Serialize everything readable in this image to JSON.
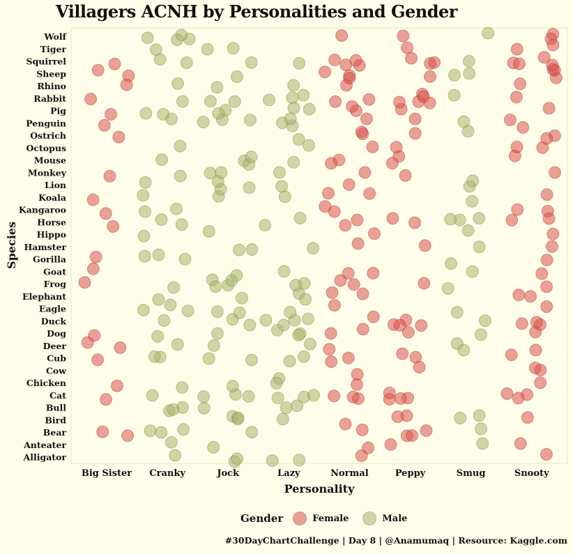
{
  "chart_data": {
    "type": "scatter",
    "subtype": "jitter",
    "title": "Villagers ACNH by Personalities and Gender",
    "xlabel": "Personality",
    "ylabel": "Species",
    "categories": [
      "Big Sister",
      "Cranky",
      "Jock",
      "Lazy",
      "Normal",
      "Peppy",
      "Smug",
      "Snooty"
    ],
    "species": [
      "Alligator",
      "Anteater",
      "Bear",
      "Bird",
      "Bull",
      "Cat",
      "Chicken",
      "Cow",
      "Cub",
      "Deer",
      "Dog",
      "Duck",
      "Eagle",
      "Elephant",
      "Frog",
      "Goat",
      "Gorilla",
      "Hamster",
      "Hippo",
      "Horse",
      "Kangaroo",
      "Koala",
      "Lion",
      "Monkey",
      "Mouse",
      "Octopus",
      "Ostrich",
      "Penguin",
      "Pig",
      "Rabbit",
      "Rhino",
      "Sheep",
      "Squirrel",
      "Tiger",
      "Wolf"
    ],
    "legend": {
      "title": "Gender",
      "position": "bottom",
      "entries": [
        {
          "name": "Female",
          "color": "#d9534f"
        },
        {
          "name": "Male",
          "color": "#a8b56c"
        }
      ]
    },
    "grid": false,
    "caption": "#30DayChartChallenge | Day 8 | @Anamumaq | Resource: Kaggle.com",
    "counts": {
      "Alligator": {
        "Big Sister": 0,
        "Cranky": 1,
        "Jock": 2,
        "Lazy": 2,
        "Normal": 1,
        "Peppy": 0,
        "Smug": 0,
        "Snooty": 1
      },
      "Anteater": {
        "Big Sister": 0,
        "Cranky": 1,
        "Jock": 1,
        "Lazy": 0,
        "Normal": 1,
        "Peppy": 1,
        "Smug": 1,
        "Snooty": 1
      },
      "Bear": {
        "Big Sister": 2,
        "Cranky": 3,
        "Jock": 1,
        "Lazy": 0,
        "Normal": 1,
        "Peppy": 3,
        "Smug": 1,
        "Snooty": 0
      },
      "Bird": {
        "Big Sister": 0,
        "Cranky": 0,
        "Jock": 3,
        "Lazy": 1,
        "Normal": 1,
        "Peppy": 2,
        "Smug": 2,
        "Snooty": 1
      },
      "Bull": {
        "Big Sister": 0,
        "Cranky": 3,
        "Jock": 1,
        "Lazy": 2,
        "Normal": 0,
        "Peppy": 0,
        "Smug": 0,
        "Snooty": 0
      },
      "Cat": {
        "Big Sister": 1,
        "Cranky": 1,
        "Jock": 3,
        "Lazy": 3,
        "Normal": 3,
        "Peppy": 4,
        "Smug": 0,
        "Snooty": 3
      },
      "Chicken": {
        "Big Sister": 1,
        "Cranky": 1,
        "Jock": 1,
        "Lazy": 2,
        "Normal": 1,
        "Peppy": 0,
        "Smug": 0,
        "Snooty": 1
      },
      "Cow": {
        "Big Sister": 0,
        "Cranky": 0,
        "Jock": 0,
        "Lazy": 0,
        "Normal": 1,
        "Peppy": 1,
        "Smug": 0,
        "Snooty": 2
      },
      "Cub": {
        "Big Sister": 1,
        "Cranky": 2,
        "Jock": 2,
        "Lazy": 2,
        "Normal": 2,
        "Peppy": 2,
        "Smug": 0,
        "Snooty": 1
      },
      "Deer": {
        "Big Sister": 2,
        "Cranky": 1,
        "Jock": 1,
        "Lazy": 1,
        "Normal": 1,
        "Peppy": 0,
        "Smug": 2,
        "Snooty": 1
      },
      "Dog": {
        "Big Sister": 1,
        "Cranky": 1,
        "Jock": 1,
        "Lazy": 3,
        "Normal": 2,
        "Peppy": 1,
        "Smug": 1,
        "Snooty": 1
      },
      "Duck": {
        "Big Sister": 0,
        "Cranky": 1,
        "Jock": 2,
        "Lazy": 4,
        "Normal": 1,
        "Peppy": 4,
        "Smug": 1,
        "Snooty": 3
      },
      "Eagle": {
        "Big Sister": 0,
        "Cranky": 3,
        "Jock": 2,
        "Lazy": 1,
        "Normal": 1,
        "Peppy": 0,
        "Smug": 1,
        "Snooty": 1
      },
      "Elephant": {
        "Big Sister": 0,
        "Cranky": 1,
        "Jock": 1,
        "Lazy": 2,
        "Normal": 2,
        "Peppy": 0,
        "Smug": 0,
        "Snooty": 2
      },
      "Frog": {
        "Big Sister": 1,
        "Cranky": 1,
        "Jock": 4,
        "Lazy": 2,
        "Normal": 2,
        "Peppy": 1,
        "Smug": 1,
        "Snooty": 1
      },
      "Goat": {
        "Big Sister": 1,
        "Cranky": 0,
        "Jock": 1,
        "Lazy": 1,
        "Normal": 2,
        "Peppy": 0,
        "Smug": 1,
        "Snooty": 1
      },
      "Gorilla": {
        "Big Sister": 1,
        "Cranky": 3,
        "Jock": 0,
        "Lazy": 0,
        "Normal": 0,
        "Peppy": 0,
        "Smug": 1,
        "Snooty": 1
      },
      "Hamster": {
        "Big Sister": 0,
        "Cranky": 0,
        "Jock": 2,
        "Lazy": 1,
        "Normal": 1,
        "Peppy": 1,
        "Smug": 1,
        "Snooty": 1
      },
      "Hippo": {
        "Big Sister": 0,
        "Cranky": 1,
        "Jock": 1,
        "Lazy": 0,
        "Normal": 1,
        "Peppy": 0,
        "Smug": 1,
        "Snooty": 1
      },
      "Horse": {
        "Big Sister": 1,
        "Cranky": 2,
        "Jock": 0,
        "Lazy": 2,
        "Normal": 2,
        "Peppy": 2,
        "Smug": 3,
        "Snooty": 2
      },
      "Kangaroo": {
        "Big Sister": 1,
        "Cranky": 2,
        "Jock": 0,
        "Lazy": 0,
        "Normal": 2,
        "Peppy": 0,
        "Smug": 0,
        "Snooty": 2
      },
      "Koala": {
        "Big Sister": 1,
        "Cranky": 1,
        "Jock": 1,
        "Lazy": 1,
        "Normal": 2,
        "Peppy": 0,
        "Smug": 1,
        "Snooty": 1
      },
      "Lion": {
        "Big Sister": 0,
        "Cranky": 1,
        "Jock": 3,
        "Lazy": 1,
        "Normal": 1,
        "Peppy": 0,
        "Smug": 2,
        "Snooty": 0
      },
      "Monkey": {
        "Big Sister": 1,
        "Cranky": 1,
        "Jock": 2,
        "Lazy": 1,
        "Normal": 1,
        "Peppy": 1,
        "Smug": 0,
        "Snooty": 1
      },
      "Mouse": {
        "Big Sister": 0,
        "Cranky": 1,
        "Jock": 3,
        "Lazy": 1,
        "Normal": 2,
        "Peppy": 2,
        "Smug": 0,
        "Snooty": 1
      },
      "Octopus": {
        "Big Sister": 0,
        "Cranky": 1,
        "Jock": 0,
        "Lazy": 1,
        "Normal": 1,
        "Peppy": 1,
        "Smug": 0,
        "Snooty": 2
      },
      "Ostrich": {
        "Big Sister": 1,
        "Cranky": 0,
        "Jock": 0,
        "Lazy": 1,
        "Normal": 2,
        "Peppy": 1,
        "Smug": 1,
        "Snooty": 2
      },
      "Penguin": {
        "Big Sister": 1,
        "Cranky": 1,
        "Jock": 3,
        "Lazy": 3,
        "Normal": 1,
        "Peppy": 1,
        "Smug": 1,
        "Snooty": 2
      },
      "Pig": {
        "Big Sister": 1,
        "Cranky": 2,
        "Jock": 2,
        "Lazy": 2,
        "Normal": 2,
        "Peppy": 1,
        "Smug": 0,
        "Snooty": 1
      },
      "Rabbit": {
        "Big Sister": 1,
        "Cranky": 1,
        "Jock": 2,
        "Lazy": 3,
        "Normal": 2,
        "Peppy": 5,
        "Smug": 1,
        "Snooty": 1
      },
      "Rhino": {
        "Big Sister": 1,
        "Cranky": 1,
        "Jock": 1,
        "Lazy": 1,
        "Normal": 1,
        "Peppy": 0,
        "Smug": 0,
        "Snooty": 1
      },
      "Sheep": {
        "Big Sister": 2,
        "Cranky": 0,
        "Jock": 1,
        "Lazy": 0,
        "Normal": 3,
        "Peppy": 1,
        "Smug": 2,
        "Snooty": 3
      },
      "Squirrel": {
        "Big Sister": 1,
        "Cranky": 2,
        "Jock": 1,
        "Lazy": 1,
        "Normal": 4,
        "Peppy": 3,
        "Smug": 1,
        "Snooty": 4
      },
      "Tiger": {
        "Big Sister": 0,
        "Cranky": 1,
        "Jock": 2,
        "Lazy": 0,
        "Normal": 0,
        "Peppy": 1,
        "Smug": 0,
        "Snooty": 2
      },
      "Wolf": {
        "Big Sister": 0,
        "Cranky": 4,
        "Jock": 0,
        "Lazy": 0,
        "Normal": 1,
        "Peppy": 1,
        "Smug": 1,
        "Snooty": 2
      }
    }
  }
}
